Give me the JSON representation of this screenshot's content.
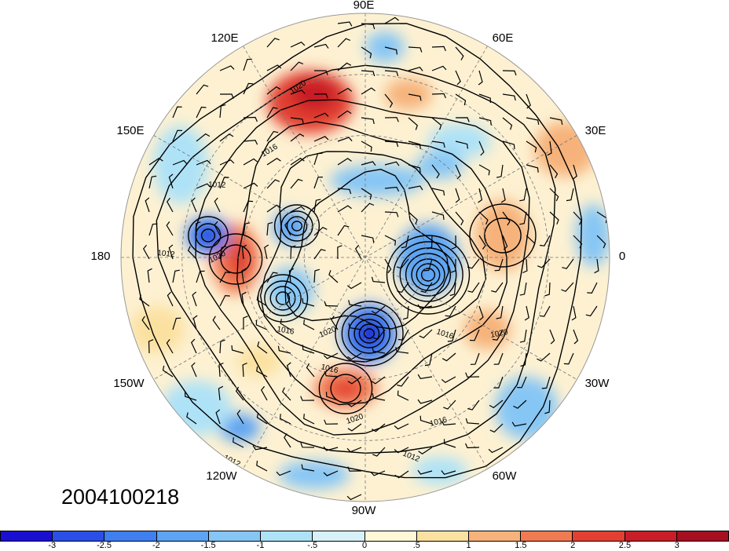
{
  "date_label": "2004100218",
  "longitude_labels": [
    {
      "text": "90E"
    },
    {
      "text": "60E"
    },
    {
      "text": "30E"
    },
    {
      "text": "0"
    },
    {
      "text": "30W"
    },
    {
      "text": "60W"
    },
    {
      "text": "90W"
    },
    {
      "text": "120W"
    },
    {
      "text": "150W"
    },
    {
      "text": "180"
    },
    {
      "text": "150E"
    },
    {
      "text": "120E"
    }
  ],
  "isobar_labels": [
    "1020",
    "1012",
    "1016",
    "1012",
    "1020",
    "1016",
    "1020",
    "1016",
    "1020",
    "1016",
    "1016",
    "1012",
    "1020",
    "1012"
  ],
  "colorbar": {
    "ticks": [
      "-3",
      "-2.5",
      "-2",
      "-1.5",
      "-1",
      "-.5",
      "0",
      ".5",
      "1",
      "1.5",
      "2",
      "2.5",
      "3"
    ],
    "colors": [
      "#1a0fd1",
      "#2b4fe6",
      "#3f7fef",
      "#5da4f2",
      "#86c6f5",
      "#aee2f7",
      "#d8f1f9",
      "#fff8d6",
      "#fbe1a0",
      "#f6b27a",
      "#f07a52",
      "#e24032",
      "#c81e28",
      "#a50f1f"
    ]
  }
}
